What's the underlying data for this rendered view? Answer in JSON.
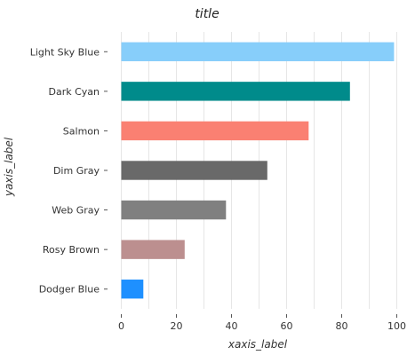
{
  "chart_data": {
    "type": "bar",
    "orientation": "horizontal",
    "title": "title",
    "xlabel": "xaxis_label",
    "ylabel": "yaxis_label",
    "categories": [
      "Light Sky Blue",
      "Dark Cyan",
      "Salmon",
      "Dim Gray",
      "Web Gray",
      "Rosy Brown",
      "Dodger Blue"
    ],
    "values": [
      99,
      83,
      68,
      53,
      38,
      23,
      8
    ],
    "colors": [
      "#87cefa",
      "#008b8b",
      "#fa8072",
      "#696969",
      "#808080",
      "#bc8f8f",
      "#1e90ff"
    ],
    "xlim": [
      0,
      100
    ],
    "xticks": [
      0,
      20,
      40,
      60,
      80,
      100
    ],
    "xtick_labels": [
      "0",
      "20",
      "40",
      "60",
      "80",
      "100"
    ],
    "grid": true
  }
}
